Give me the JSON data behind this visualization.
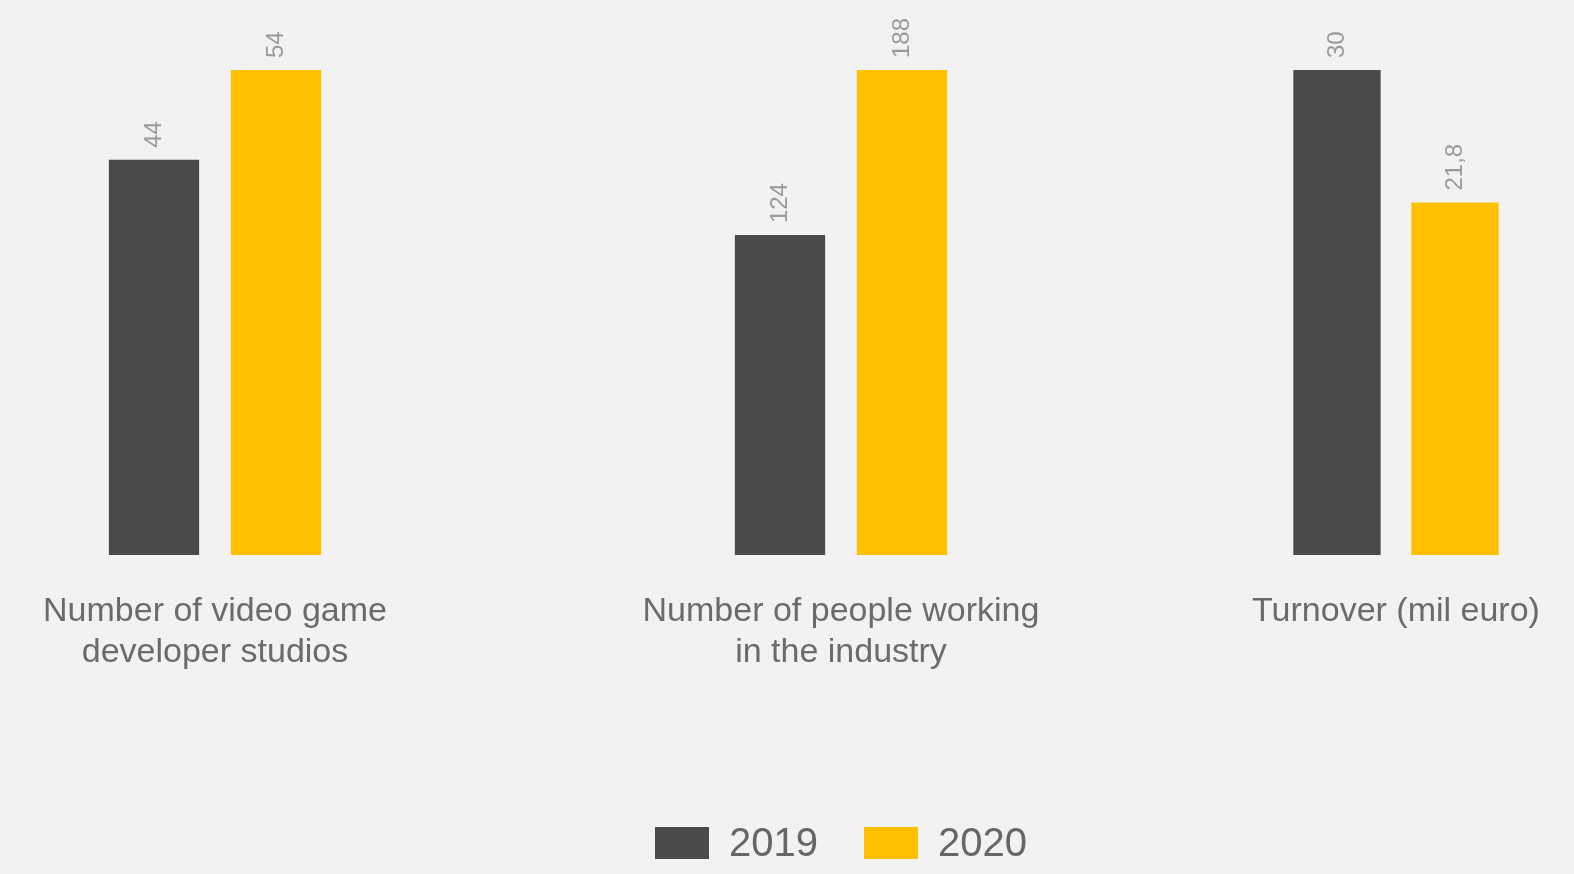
{
  "chart_data": [
    {
      "type": "bar",
      "categories": [
        "Number of video game developer studios"
      ],
      "series": [
        {
          "color": "#4a4a4a",
          "values": [
            44
          ],
          "value_labels": [
            "44"
          ]
        },
        {
          "color": "#ffc000",
          "values": [
            54
          ],
          "value_labels": [
            "54"
          ]
        }
      ],
      "tick_labels": "x",
      "grid": false,
      "legend": false
    },
    {
      "type": "bar",
      "categories": [
        "Number of people working in the industry"
      ],
      "series": [
        {
          "name": "2019",
          "color": "#4a4a4a",
          "values": [
            124
          ],
          "value_labels": [
            "124"
          ]
        },
        {
          "name": "2020",
          "color": "#ffc000",
          "values": [
            188
          ],
          "value_labels": [
            "188"
          ]
        }
      ],
      "tick_labels": "x",
      "grid": false,
      "legend": "bottom"
    },
    {
      "type": "bar",
      "categories": [
        "Turnover (mil euro)"
      ],
      "series": [
        {
          "color": "#4a4a4a",
          "values": [
            30
          ],
          "value_labels": [
            "30"
          ]
        },
        {
          "color": "#ffc000",
          "values": [
            21.8
          ],
          "value_labels": [
            "21,8"
          ]
        }
      ],
      "tick_labels": "x",
      "grid": false,
      "legend": false
    }
  ]
}
